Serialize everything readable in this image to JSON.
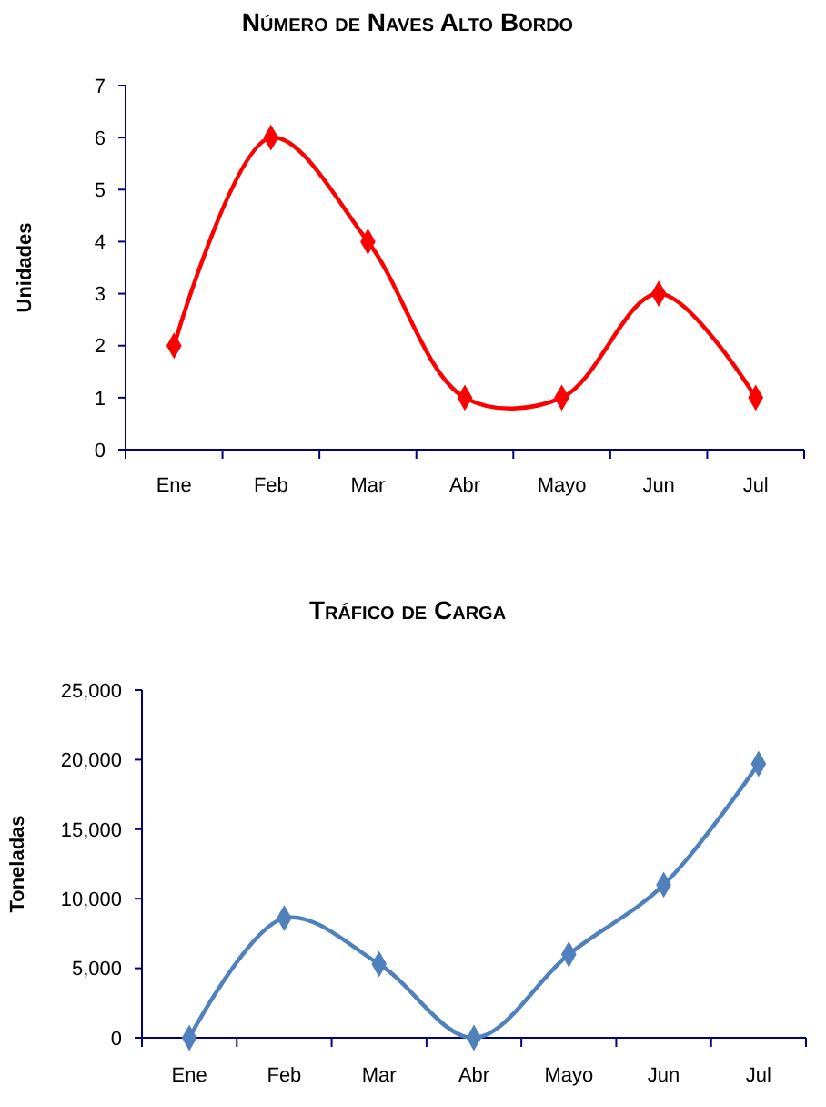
{
  "chart_data": [
    {
      "type": "line",
      "title": "Número de Naves Alto Bordo",
      "ylabel": "Unidades",
      "categories": [
        "Ene",
        "Feb",
        "Mar",
        "Abr",
        "Mayo",
        "Jun",
        "Jul"
      ],
      "series": [
        {
          "color": "#ff0000",
          "values": [
            2,
            6,
            4,
            1,
            1,
            3,
            1
          ]
        }
      ],
      "ylim": [
        0,
        7
      ],
      "yticks": [
        0,
        1,
        2,
        3,
        4,
        5,
        6,
        7
      ],
      "marker": "diamond"
    },
    {
      "type": "line",
      "title": "Tráfico de Carga",
      "ylabel": "Toneladas",
      "categories": [
        "Ene",
        "Feb",
        "Mar",
        "Abr",
        "Mayo",
        "Jun",
        "Jul"
      ],
      "series": [
        {
          "color": "#4f81bd",
          "values": [
            0,
            8600,
            5300,
            0,
            6000,
            11000,
            19700
          ]
        }
      ],
      "ylim": [
        0,
        25000
      ],
      "yticks": [
        {
          "value": 0,
          "label": "0"
        },
        {
          "value": 5000,
          "label": "5,000"
        },
        {
          "value": 10000,
          "label": "10,000"
        },
        {
          "value": 15000,
          "label": "15,000"
        },
        {
          "value": 20000,
          "label": "20,000"
        },
        {
          "value": 25000,
          "label": "25,000"
        }
      ],
      "marker": "diamond"
    }
  ]
}
